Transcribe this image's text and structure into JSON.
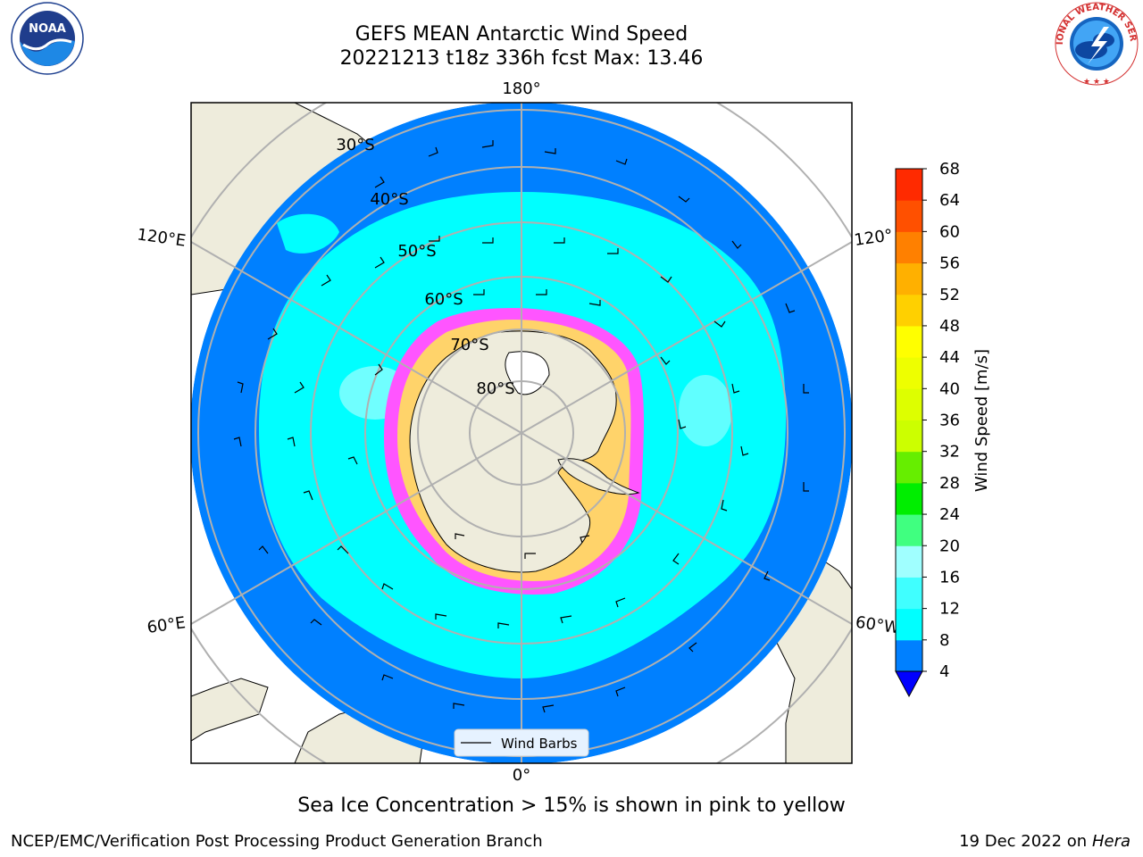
{
  "header": {
    "title_line1": "GEFS MEAN Antarctic Wind Speed",
    "title_line2": "20221213 t18z 336h fcst   Max: 13.46"
  },
  "logos": {
    "noaa_text": "NOAA",
    "noaa_ring_text": "NATIONAL OCEANIC AND ATMOSPHERIC ADMINISTRATION",
    "noaa_bottom_text": "U.S. DEPARTMENT OF COMMERCE",
    "nws_ring_text": "NATIONAL WEATHER SERVICE"
  },
  "map": {
    "longitude_labels": {
      "top": "180°",
      "bottom": "0°",
      "left_upper": "120°E",
      "left_lower": "60°E",
      "right_upper": "120°",
      "right_lower": "60°W"
    },
    "latitude_labels": [
      "30°S",
      "40°S",
      "50°S",
      "60°S",
      "70°S",
      "80°S"
    ],
    "legend_label": "Wind Barbs",
    "colors": {
      "ocean_low": "#0080ff",
      "ocean_mid": "#00ffff",
      "land": "#eeecdc",
      "sea_ice": "#ff55ff",
      "grid": "#b0b0b0"
    }
  },
  "colorbar": {
    "label": "Wind Speed [m/s]",
    "ticks": [
      "4",
      "8",
      "12",
      "16",
      "20",
      "24",
      "28",
      "32",
      "36",
      "40",
      "44",
      "48",
      "52",
      "56",
      "60",
      "64",
      "68"
    ],
    "colors": [
      "#0080ff",
      "#00ffff",
      "#40ffff",
      "#a0ffff",
      "#40ff80",
      "#00ee00",
      "#66ee00",
      "#ccff00",
      "#ddff00",
      "#eeff00",
      "#ffff00",
      "#ffd000",
      "#ffb000",
      "#ff8000",
      "#ff5000",
      "#ff2a00"
    ]
  },
  "caption": "Sea Ice Concentration > 15% is shown in pink to yellow",
  "footer": {
    "left": "NCEP/EMC/Verification Post Processing Product Generation Branch",
    "right_date": "19 Dec 2022 on",
    "right_host": "Hera"
  }
}
